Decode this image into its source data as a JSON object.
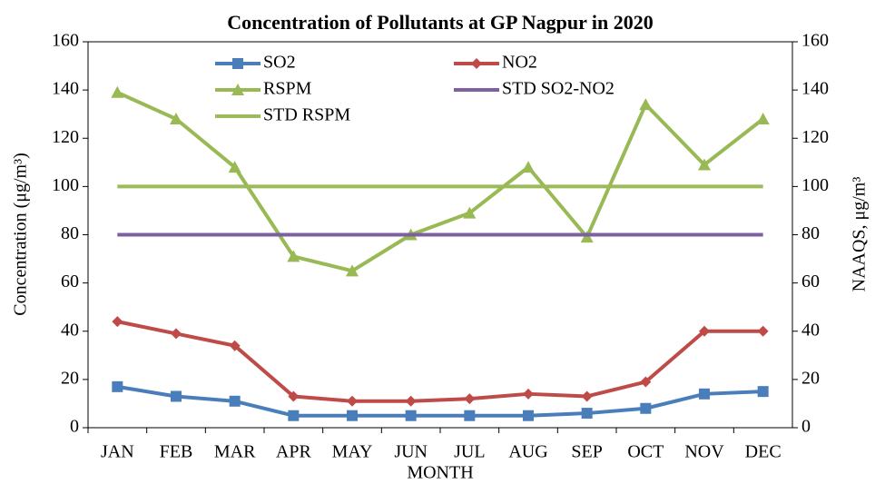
{
  "chart_data": {
    "type": "line",
    "title": "Concentration of Pollutants at GP Nagpur in 2020",
    "x_label": "MONTH",
    "y_label": "Concentration (μg/m³)",
    "y2_label": "NAAQS, μg/m³",
    "categories": [
      "JAN",
      "FEB",
      "MAR",
      "APR",
      "MAY",
      "JUN",
      "JUL",
      "AUG",
      "SEP",
      "OCT",
      "NOV",
      "DEC"
    ],
    "series": [
      {
        "name": "SO2",
        "color": "#4a7ebb",
        "marker": "square",
        "values": [
          17,
          13,
          11,
          5,
          5,
          5,
          5,
          5,
          6,
          8,
          14,
          15
        ]
      },
      {
        "name": "NO2",
        "color": "#be4b48",
        "marker": "diamond",
        "values": [
          44,
          39,
          34,
          13,
          11,
          11,
          12,
          14,
          13,
          19,
          40,
          40
        ]
      },
      {
        "name": "RSPM",
        "color": "#98b954",
        "marker": "triangle",
        "values": [
          139,
          128,
          108,
          71,
          65,
          80,
          89,
          108,
          79,
          134,
          109,
          128
        ]
      },
      {
        "name": "STD SO2-NO2",
        "color": "#7d60a0",
        "marker": "none",
        "values": [
          80,
          80,
          80,
          80,
          80,
          80,
          80,
          80,
          80,
          80,
          80,
          80
        ]
      },
      {
        "name": "STD RSPM",
        "color": "#9bbb59",
        "marker": "none",
        "values": [
          100,
          100,
          100,
          100,
          100,
          100,
          100,
          100,
          100,
          100,
          100,
          100
        ]
      }
    ],
    "ylim": [
      0,
      160
    ],
    "yticks": [
      0,
      20,
      40,
      60,
      80,
      100,
      120,
      140,
      160
    ],
    "y2lim": [
      0,
      160
    ],
    "y2ticks": [
      0,
      20,
      40,
      60,
      80,
      100,
      120,
      140,
      160
    ],
    "grid": false,
    "legend": "top"
  }
}
